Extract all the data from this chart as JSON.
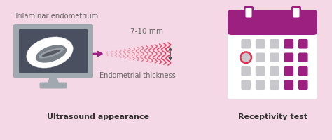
{
  "background_color": "#f5d8e5",
  "title_left": "Ultrasound appearance",
  "title_right": "Receptivity test",
  "label_trilaminar": "Trilaminar endometrium",
  "label_thickness": "Endometrial thickness",
  "label_mm": "7-10 mm",
  "monitor_frame": "#a0a8b0",
  "monitor_screen": "#4a5060",
  "arrow_color": "#9b2080",
  "wave_color": "#e04060",
  "calendar_header": "#9b2080",
  "calendar_bg": "#ffffff",
  "calendar_dot_gray": "#c8c8cc",
  "calendar_dot_purple": "#9b2080",
  "circle_color": "#e03050",
  "text_color": "#666666",
  "bold_color": "#333333"
}
